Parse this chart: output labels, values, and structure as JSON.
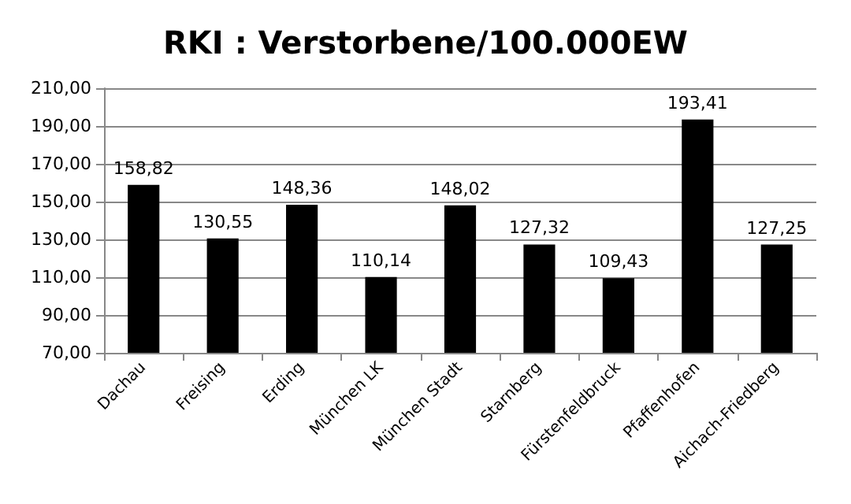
{
  "chart_data": {
    "type": "bar",
    "title": "RKI : Verstorbene/100.000EW",
    "categories": [
      "Dachau",
      "Freising",
      "Erding",
      "München LK",
      "München Stadt",
      "Starnberg",
      "Fürstenfeldbruck",
      "Pfaffenhofen",
      "Aichach-Friedberg"
    ],
    "values": [
      158.82,
      130.55,
      148.36,
      110.14,
      148.02,
      127.32,
      109.43,
      193.41,
      127.25
    ],
    "value_labels": [
      "158,82",
      "130,55",
      "148,36",
      "110,14",
      "148,02",
      "127,32",
      "109,43",
      "193,41",
      "127,25"
    ],
    "color": "#000000",
    "ylim": [
      70,
      210
    ],
    "yticks": [
      {
        "value": 70,
        "label": "70,00"
      },
      {
        "value": 90,
        "label": "90,00"
      },
      {
        "value": 110,
        "label": "110,00"
      },
      {
        "value": 130,
        "label": "130,00"
      },
      {
        "value": 150,
        "label": "150,00"
      },
      {
        "value": 170,
        "label": "170,00"
      },
      {
        "value": 190,
        "label": "190,00"
      },
      {
        "value": 210,
        "label": "210,00"
      }
    ],
    "grid": "y"
  }
}
